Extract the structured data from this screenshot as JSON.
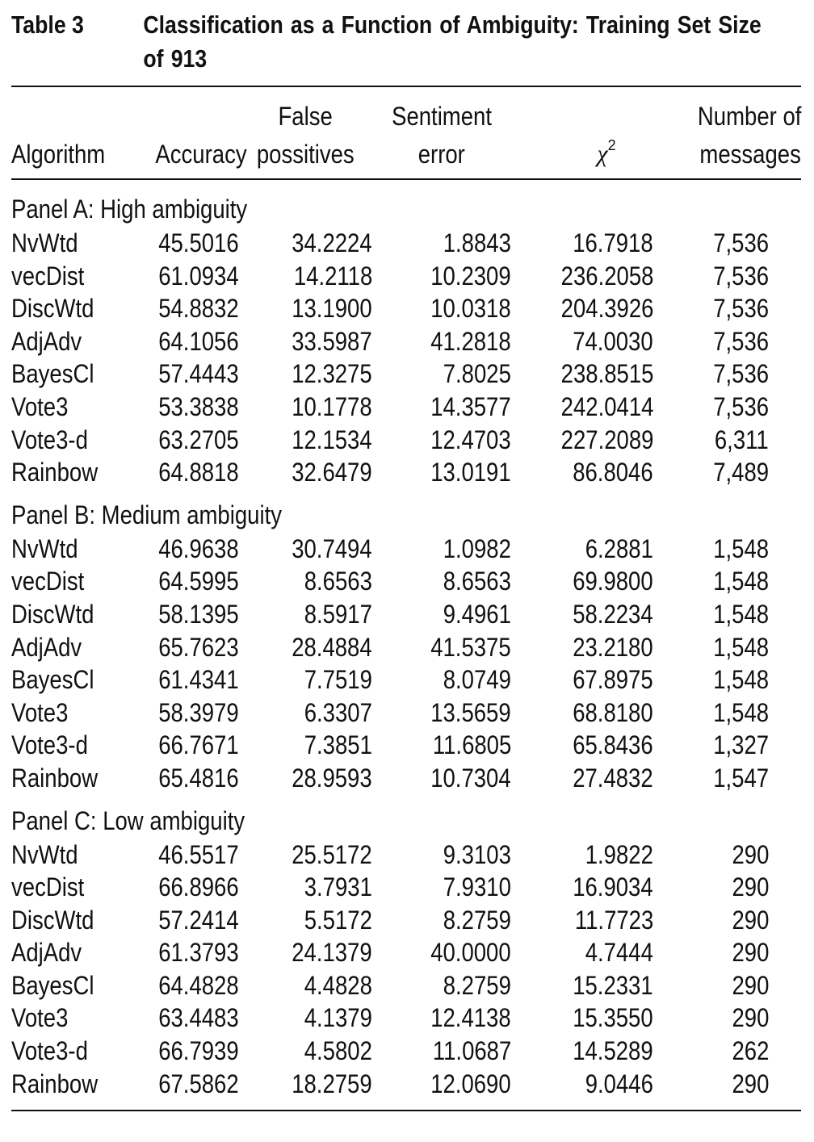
{
  "caption": {
    "label": "Table 3",
    "title_line1": "Classification as a Function of Ambiguity: Training Set Size",
    "title_line2": "of 913"
  },
  "columns": {
    "algorithm": "Algorithm",
    "accuracy": "Accuracy",
    "false_positives_line1": "False",
    "false_positives_line2": "possitives",
    "sentiment_error_line1": "Sentiment",
    "sentiment_error_line2": "error",
    "chi_symbol": "χ",
    "chi_superscript": "2",
    "messages_line1": "Number of",
    "messages_line2": "messages"
  },
  "panels": [
    {
      "title": "Panel A: High ambiguity",
      "rows": [
        {
          "algorithm": "NvWtd",
          "accuracy": "45.5016",
          "false_positives": "34.2224",
          "sentiment_error": "1.8843",
          "chi2": "16.7918",
          "messages": "7,536"
        },
        {
          "algorithm": "vecDist",
          "accuracy": "61.0934",
          "false_positives": "14.2118",
          "sentiment_error": "10.2309",
          "chi2": "236.2058",
          "messages": "7,536"
        },
        {
          "algorithm": "DiscWtd",
          "accuracy": "54.8832",
          "false_positives": "13.1900",
          "sentiment_error": "10.0318",
          "chi2": "204.3926",
          "messages": "7,536"
        },
        {
          "algorithm": "AdjAdv",
          "accuracy": "64.1056",
          "false_positives": "33.5987",
          "sentiment_error": "41.2818",
          "chi2": "74.0030",
          "messages": "7,536"
        },
        {
          "algorithm": "BayesCl",
          "accuracy": "57.4443",
          "false_positives": "12.3275",
          "sentiment_error": "7.8025",
          "chi2": "238.8515",
          "messages": "7,536"
        },
        {
          "algorithm": "Vote3",
          "accuracy": "53.3838",
          "false_positives": "10.1778",
          "sentiment_error": "14.3577",
          "chi2": "242.0414",
          "messages": "7,536"
        },
        {
          "algorithm": "Vote3-d",
          "accuracy": "63.2705",
          "false_positives": "12.1534",
          "sentiment_error": "12.4703",
          "chi2": "227.2089",
          "messages": "6,311"
        },
        {
          "algorithm": "Rainbow",
          "accuracy": "64.8818",
          "false_positives": "32.6479",
          "sentiment_error": "13.0191",
          "chi2": "86.8046",
          "messages": "7,489"
        }
      ]
    },
    {
      "title": "Panel B: Medium ambiguity",
      "rows": [
        {
          "algorithm": "NvWtd",
          "accuracy": "46.9638",
          "false_positives": "30.7494",
          "sentiment_error": "1.0982",
          "chi2": "6.2881",
          "messages": "1,548"
        },
        {
          "algorithm": "vecDist",
          "accuracy": "64.5995",
          "false_positives": "8.6563",
          "sentiment_error": "8.6563",
          "chi2": "69.9800",
          "messages": "1,548"
        },
        {
          "algorithm": "DiscWtd",
          "accuracy": "58.1395",
          "false_positives": "8.5917",
          "sentiment_error": "9.4961",
          "chi2": "58.2234",
          "messages": "1,548"
        },
        {
          "algorithm": "AdjAdv",
          "accuracy": "65.7623",
          "false_positives": "28.4884",
          "sentiment_error": "41.5375",
          "chi2": "23.2180",
          "messages": "1,548"
        },
        {
          "algorithm": "BayesCl",
          "accuracy": "61.4341",
          "false_positives": "7.7519",
          "sentiment_error": "8.0749",
          "chi2": "67.8975",
          "messages": "1,548"
        },
        {
          "algorithm": "Vote3",
          "accuracy": "58.3979",
          "false_positives": "6.3307",
          "sentiment_error": "13.5659",
          "chi2": "68.8180",
          "messages": "1,548"
        },
        {
          "algorithm": "Vote3-d",
          "accuracy": "66.7671",
          "false_positives": "7.3851",
          "sentiment_error": "11.6805",
          "chi2": "65.8436",
          "messages": "1,327"
        },
        {
          "algorithm": "Rainbow",
          "accuracy": "65.4816",
          "false_positives": "28.9593",
          "sentiment_error": "10.7304",
          "chi2": "27.4832",
          "messages": "1,547"
        }
      ]
    },
    {
      "title": "Panel C: Low ambiguity",
      "rows": [
        {
          "algorithm": "NvWtd",
          "accuracy": "46.5517",
          "false_positives": "25.5172",
          "sentiment_error": "9.3103",
          "chi2": "1.9822",
          "messages": "290"
        },
        {
          "algorithm": "vecDist",
          "accuracy": "66.8966",
          "false_positives": "3.7931",
          "sentiment_error": "7.9310",
          "chi2": "16.9034",
          "messages": "290"
        },
        {
          "algorithm": "DiscWtd",
          "accuracy": "57.2414",
          "false_positives": "5.5172",
          "sentiment_error": "8.2759",
          "chi2": "11.7723",
          "messages": "290"
        },
        {
          "algorithm": "AdjAdv",
          "accuracy": "61.3793",
          "false_positives": "24.1379",
          "sentiment_error": "40.0000",
          "chi2": "4.7444",
          "messages": "290"
        },
        {
          "algorithm": "BayesCl",
          "accuracy": "64.4828",
          "false_positives": "4.4828",
          "sentiment_error": "8.2759",
          "chi2": "15.2331",
          "messages": "290"
        },
        {
          "algorithm": "Vote3",
          "accuracy": "63.4483",
          "false_positives": "4.1379",
          "sentiment_error": "12.4138",
          "chi2": "15.3550",
          "messages": "290"
        },
        {
          "algorithm": "Vote3-d",
          "accuracy": "66.7939",
          "false_positives": "4.5802",
          "sentiment_error": "11.0687",
          "chi2": "14.5289",
          "messages": "262"
        },
        {
          "algorithm": "Rainbow",
          "accuracy": "67.5862",
          "false_positives": "18.2759",
          "sentiment_error": "12.0690",
          "chi2": "9.0446",
          "messages": "290"
        }
      ]
    }
  ]
}
